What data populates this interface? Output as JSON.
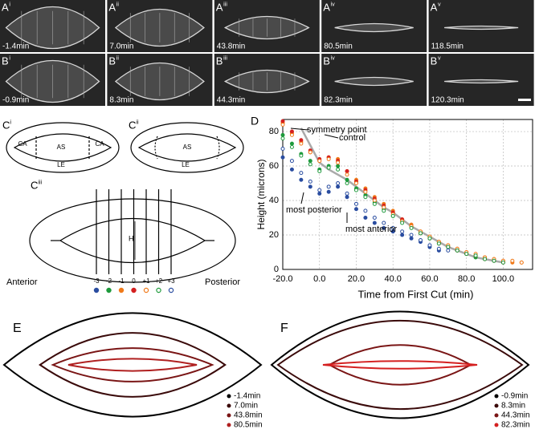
{
  "movies": [
    {
      "letter": "A",
      "sup": "i",
      "time": "-1.4min"
    },
    {
      "letter": "A",
      "sup": "ii",
      "time": "7.0min"
    },
    {
      "letter": "A",
      "sup": "iii",
      "time": "43.8min"
    },
    {
      "letter": "A",
      "sup": "iv",
      "time": "80.5min"
    },
    {
      "letter": "A",
      "sup": "v",
      "time": "118.5min"
    },
    {
      "letter": "B",
      "sup": "i",
      "time": "-0.9min"
    },
    {
      "letter": "B",
      "sup": "ii",
      "time": "8.3min"
    },
    {
      "letter": "B",
      "sup": "iii",
      "time": "44.3min"
    },
    {
      "letter": "B",
      "sup": "iv",
      "time": "82.3min"
    },
    {
      "letter": "B",
      "sup": "v",
      "time": "120.3min"
    }
  ],
  "schematic": {
    "ci": {
      "letter": "C",
      "sup": "i",
      "labels": [
        "CA",
        "AS",
        "CA",
        "LE"
      ]
    },
    "cii": {
      "letter": "C",
      "sup": "ii",
      "labels": [
        "AS",
        "LE"
      ]
    },
    "ciii": {
      "letter": "C",
      "sup": "iii",
      "height": "H",
      "anterior": "Anterior",
      "posterior": "Posterior"
    }
  },
  "chart_data": {
    "type": "scatter",
    "panel": "D",
    "x_label": "Time from First Cut (min)",
    "y_label": "Height (microns)",
    "xlim": [
      -20,
      116
    ],
    "ylim": [
      0,
      87
    ],
    "xticks": [
      {
        "value": -20,
        "label": "-20.0"
      },
      {
        "value": 0,
        "label": "0.0"
      },
      {
        "value": 20,
        "label": "20.0"
      },
      {
        "value": 40,
        "label": "40.0"
      },
      {
        "value": 60,
        "label": "60.0"
      },
      {
        "value": 80,
        "label": "80.0"
      },
      {
        "value": 100,
        "label": "100.0"
      }
    ],
    "yticks": [
      0,
      20,
      40,
      60,
      80
    ],
    "grid": true,
    "x": [
      -20,
      -15,
      -10,
      -5,
      0,
      5,
      10,
      15,
      20,
      25,
      30,
      35,
      40,
      45,
      50,
      55,
      60,
      65,
      70,
      75,
      80,
      85,
      90,
      95,
      100,
      105,
      110
    ],
    "series": [
      {
        "name": "-3",
        "color": "#2a4da0",
        "marker": "filled",
        "values": [
          65,
          58,
          52,
          48,
          44,
          45,
          48,
          42,
          35,
          30,
          27,
          24,
          22,
          20,
          18,
          16,
          13,
          11,
          null,
          null,
          null,
          null,
          null,
          null,
          null,
          null,
          null
        ]
      },
      {
        "name": "-2",
        "color": "#1e9a3c",
        "marker": "filled",
        "values": [
          78,
          73,
          67,
          63,
          58,
          60,
          60,
          52,
          47,
          43,
          39,
          35,
          31,
          28,
          25,
          21,
          18,
          16,
          13,
          11,
          9,
          7,
          6,
          5,
          null,
          null,
          null
        ]
      },
      {
        "name": "-1",
        "color": "#f07a1a",
        "marker": "filled",
        "values": [
          85,
          79,
          74,
          68,
          63,
          65,
          64,
          57,
          52,
          47,
          42,
          38,
          34,
          29,
          26,
          22,
          19,
          16,
          14,
          12,
          10,
          8,
          7,
          6,
          5,
          4,
          4
        ]
      },
      {
        "name": "0",
        "color": "#d42020",
        "marker": "filled",
        "values": [
          86,
          80,
          75,
          69,
          64,
          65,
          63,
          57,
          51,
          46,
          41,
          37,
          33,
          29,
          25,
          21,
          18,
          15,
          13,
          11,
          9,
          8,
          6,
          5,
          4,
          null,
          null
        ]
      },
      {
        "name": "+1",
        "color": "#f07a1a",
        "marker": "open",
        "values": [
          84,
          78,
          73,
          68,
          63,
          64,
          62,
          55,
          50,
          45,
          40,
          36,
          32,
          28,
          25,
          22,
          19,
          16,
          14,
          12,
          10,
          9,
          7,
          6,
          5,
          5,
          4
        ]
      },
      {
        "name": "+2",
        "color": "#1e9a3c",
        "marker": "open",
        "values": [
          76,
          71,
          66,
          61,
          57,
          59,
          58,
          50,
          46,
          42,
          38,
          34,
          31,
          27,
          24,
          21,
          18,
          15,
          13,
          11,
          9,
          8,
          6,
          5,
          4,
          null,
          null
        ]
      },
      {
        "name": "+3",
        "color": "#2a4da0",
        "marker": "open",
        "values": [
          70,
          63,
          56,
          51,
          46,
          48,
          50,
          44,
          38,
          34,
          30,
          27,
          24,
          22,
          20,
          17,
          14,
          12,
          11,
          null,
          null,
          null,
          null,
          null,
          null,
          null,
          null
        ]
      }
    ],
    "control": {
      "name": "control",
      "color": "#aaaaaa",
      "values": [
        null,
        null,
        82,
        72,
        62,
        58,
        55,
        52,
        48,
        44,
        40,
        36,
        33,
        29,
        25,
        22,
        19,
        16,
        13,
        11,
        9,
        7,
        6,
        5,
        4,
        null,
        null
      ]
    },
    "annotations": [
      "symmetry point",
      "most posterior",
      "most anterior"
    ]
  },
  "contours": [
    {
      "panel": "E",
      "legend": [
        {
          "label": "-1.4min",
          "color": "#000000"
        },
        {
          "label": "7.0min",
          "color": "#3a0a0a"
        },
        {
          "label": "43.8min",
          "color": "#7a1515"
        },
        {
          "label": "80.5min",
          "color": "#b02020"
        }
      ]
    },
    {
      "panel": "F",
      "legend": [
        {
          "label": "-0.9min",
          "color": "#000000"
        },
        {
          "label": "8.3min",
          "color": "#3a0a0a"
        },
        {
          "label": "44.3min",
          "color": "#7a1515"
        },
        {
          "label": "82.3min",
          "color": "#d42020"
        }
      ]
    }
  ]
}
